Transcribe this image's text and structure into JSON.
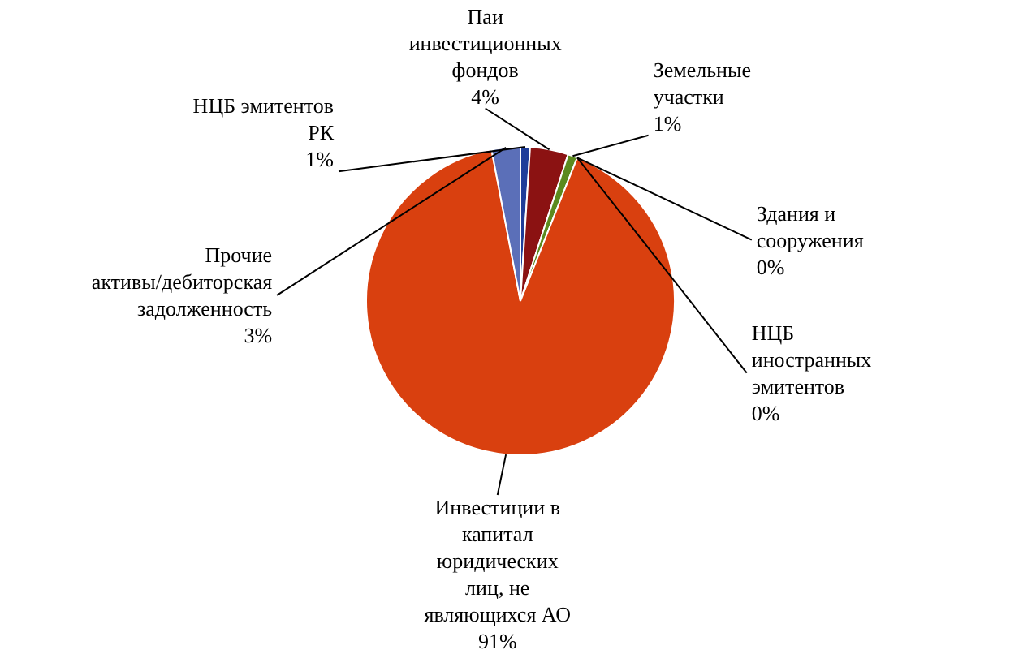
{
  "chart_data": {
    "type": "pie",
    "categories": [
      "НЦБ эмитентов РК",
      "Паи инвестиционных фондов",
      "Земельные участки",
      "Здания и сооружения",
      "НЦБ иностранных эмитентов",
      "Инвестиции в капитал юридических лиц, не являющихся АО",
      "Прочие активы/дебиторская задолженность"
    ],
    "values": [
      1,
      4,
      1,
      0,
      0,
      91,
      3
    ],
    "value_labels": [
      "1%",
      "4%",
      "1%",
      "0%",
      "0%",
      "91%",
      "3%"
    ],
    "colors": [
      "#1f3d99",
      "#8b1212",
      "#5c8a1e",
      "#1f5a78",
      "#2a4f8f",
      "#d9400f",
      "#5b6fb8"
    ]
  }
}
